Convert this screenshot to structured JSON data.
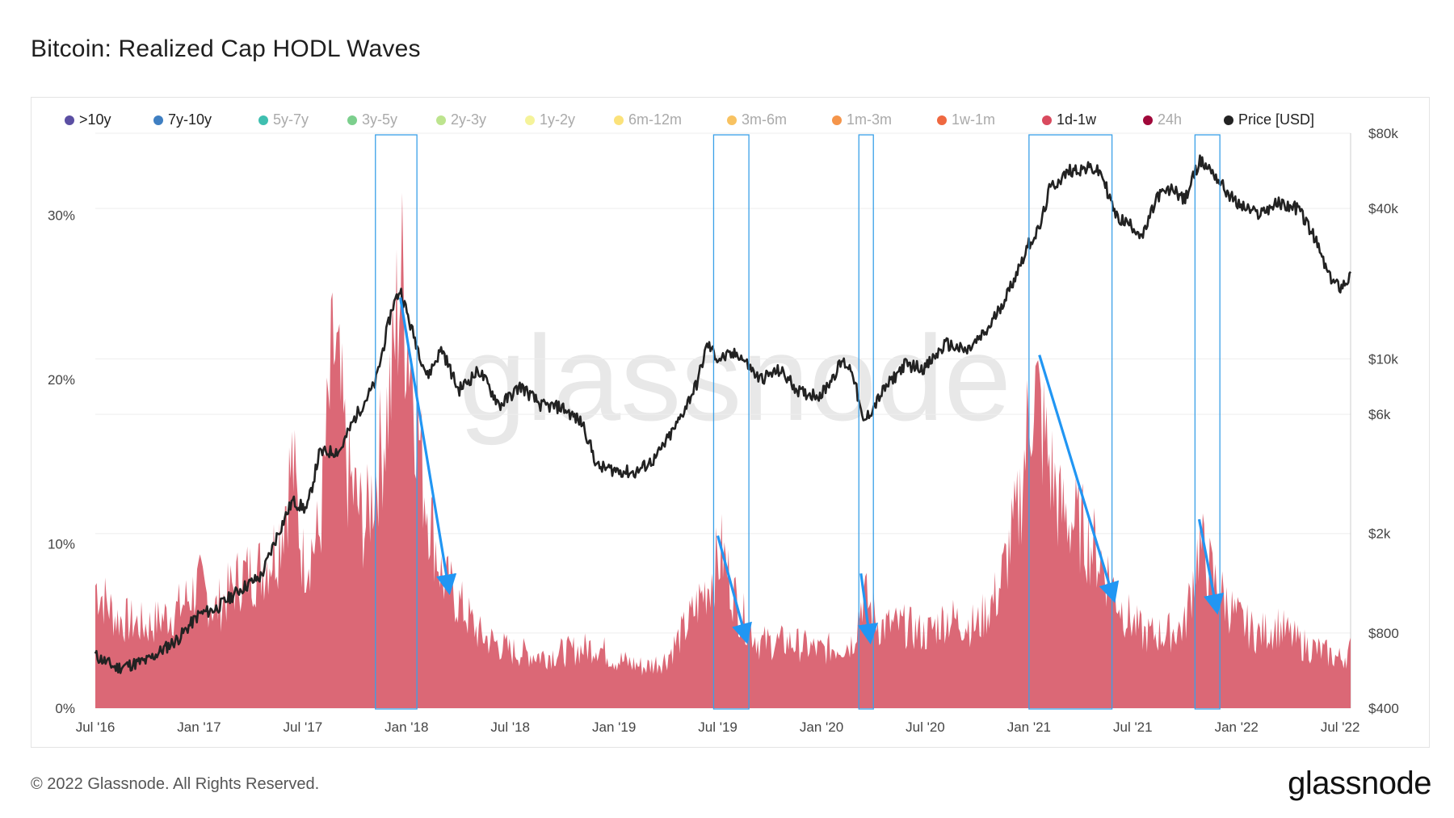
{
  "header": {
    "title": "Bitcoin: Realized Cap HODL Waves"
  },
  "footer": {
    "copyright": "© 2022 Glassnode. All Rights Reserved.",
    "logo": "glassnode"
  },
  "watermark": "glassnode",
  "colors": {
    "area": "#d9606f",
    "price": "#222222",
    "highlight": "#3aa0e8",
    "arrow": "#2196f3",
    "grid": "#eeeeee",
    "axis_text": "#444444"
  },
  "legend": [
    {
      "label": ">10y",
      "color": "#5b4fa3",
      "active": true
    },
    {
      "label": "7y-10y",
      "color": "#3f7fc2",
      "active": true
    },
    {
      "label": "5y-7y",
      "color": "#3fbfb0",
      "active": false
    },
    {
      "label": "3y-5y",
      "color": "#7ccf8d",
      "active": false
    },
    {
      "label": "2y-3y",
      "color": "#bde48e",
      "active": false
    },
    {
      "label": "1y-2y",
      "color": "#f5f39a",
      "active": false
    },
    {
      "label": "6m-12m",
      "color": "#fbe27a",
      "active": false
    },
    {
      "label": "3m-6m",
      "color": "#f8c261",
      "active": false
    },
    {
      "label": "1m-3m",
      "color": "#f5954a",
      "active": false
    },
    {
      "label": "1w-1m",
      "color": "#ef6840",
      "active": false
    },
    {
      "label": "1d-1w",
      "color": "#d94a5e",
      "active": true
    },
    {
      "label": "24h",
      "color": "#a0083a",
      "active": false
    },
    {
      "label": "Price [USD]",
      "color": "#222222",
      "active": true
    }
  ],
  "chart_data": {
    "type": "area",
    "title": "Bitcoin: Realized Cap HODL Waves",
    "series_shown": "1d-1w",
    "x_ticks": [
      "Jul '16",
      "Jan '17",
      "Jul '17",
      "Jan '18",
      "Jul '18",
      "Jan '19",
      "Jul '19",
      "Jan '20",
      "Jul '20",
      "Jan '21",
      "Jul '21",
      "Jan '22",
      "Jul '22"
    ],
    "x_range": [
      2016.5,
      2022.55
    ],
    "y_left": {
      "ticks": [
        "0%",
        "10%",
        "20%",
        "30%"
      ],
      "range": [
        0,
        35
      ]
    },
    "y_right": {
      "ticks": [
        "$400",
        "$800",
        "$2k",
        "$6k",
        "$10k",
        "$40k",
        "$80k"
      ],
      "tick_values": [
        400,
        800,
        2000,
        6000,
        10000,
        40000,
        80000
      ],
      "scale": "log",
      "range": [
        400,
        80000
      ]
    },
    "band_1d_1w_pct": [
      [
        2016.5,
        7.5
      ],
      [
        2016.6,
        5.5
      ],
      [
        2016.75,
        5.0
      ],
      [
        2016.9,
        6.0
      ],
      [
        2017.0,
        7.5
      ],
      [
        2017.08,
        6.0
      ],
      [
        2017.2,
        8.0
      ],
      [
        2017.3,
        8.5
      ],
      [
        2017.38,
        10.0
      ],
      [
        2017.45,
        15.0
      ],
      [
        2017.5,
        9.0
      ],
      [
        2017.58,
        10.5
      ],
      [
        2017.65,
        22.0
      ],
      [
        2017.72,
        14.0
      ],
      [
        2017.8,
        11.0
      ],
      [
        2017.88,
        16.0
      ],
      [
        2017.93,
        20.0
      ],
      [
        2017.97,
        26.5
      ],
      [
        2018.02,
        22.0
      ],
      [
        2018.08,
        14.0
      ],
      [
        2018.17,
        8.0
      ],
      [
        2018.25,
        6.5
      ],
      [
        2018.35,
        4.5
      ],
      [
        2018.5,
        3.5
      ],
      [
        2018.65,
        3.2
      ],
      [
        2018.8,
        3.5
      ],
      [
        2018.92,
        3.8
      ],
      [
        2019.0,
        3.0
      ],
      [
        2019.15,
        2.5
      ],
      [
        2019.25,
        3.0
      ],
      [
        2019.35,
        5.0
      ],
      [
        2019.45,
        7.5
      ],
      [
        2019.52,
        9.5
      ],
      [
        2019.6,
        6.0
      ],
      [
        2019.7,
        4.0
      ],
      [
        2019.85,
        4.0
      ],
      [
        2020.0,
        3.5
      ],
      [
        2020.15,
        4.0
      ],
      [
        2020.2,
        7.0
      ],
      [
        2020.28,
        5.0
      ],
      [
        2020.4,
        5.0
      ],
      [
        2020.5,
        4.5
      ],
      [
        2020.6,
        5.5
      ],
      [
        2020.75,
        5.0
      ],
      [
        2020.85,
        7.0
      ],
      [
        2020.95,
        12.0
      ],
      [
        2021.02,
        20.0
      ],
      [
        2021.08,
        16.0
      ],
      [
        2021.15,
        12.0
      ],
      [
        2021.25,
        11.0
      ],
      [
        2021.35,
        9.0
      ],
      [
        2021.45,
        6.0
      ],
      [
        2021.55,
        4.5
      ],
      [
        2021.65,
        4.5
      ],
      [
        2021.75,
        5.0
      ],
      [
        2021.82,
        10.0
      ],
      [
        2021.9,
        7.5
      ],
      [
        2022.0,
        5.5
      ],
      [
        2022.1,
        4.5
      ],
      [
        2022.2,
        5.0
      ],
      [
        2022.3,
        4.0
      ],
      [
        2022.4,
        3.5
      ],
      [
        2022.5,
        3.0
      ],
      [
        2022.55,
        3.5
      ]
    ],
    "price_usd": [
      [
        2016.5,
        650
      ],
      [
        2016.6,
        580
      ],
      [
        2016.75,
        620
      ],
      [
        2016.9,
        760
      ],
      [
        2017.0,
        950
      ],
      [
        2017.08,
        1000
      ],
      [
        2017.2,
        1200
      ],
      [
        2017.3,
        1350
      ],
      [
        2017.38,
        2000
      ],
      [
        2017.45,
        2700
      ],
      [
        2017.52,
        2500
      ],
      [
        2017.58,
        4200
      ],
      [
        2017.68,
        4300
      ],
      [
        2017.75,
        5800
      ],
      [
        2017.85,
        8000
      ],
      [
        2017.93,
        16000
      ],
      [
        2017.97,
        19000
      ],
      [
        2018.02,
        13500
      ],
      [
        2018.1,
        8500
      ],
      [
        2018.17,
        11000
      ],
      [
        2018.25,
        7500
      ],
      [
        2018.35,
        9000
      ],
      [
        2018.45,
        6500
      ],
      [
        2018.55,
        7800
      ],
      [
        2018.65,
        6500
      ],
      [
        2018.75,
        6400
      ],
      [
        2018.85,
        5500
      ],
      [
        2018.92,
        3700
      ],
      [
        2019.0,
        3600
      ],
      [
        2019.1,
        3500
      ],
      [
        2019.2,
        4000
      ],
      [
        2019.3,
        5400
      ],
      [
        2019.4,
        8000
      ],
      [
        2019.45,
        11500
      ],
      [
        2019.5,
        10000
      ],
      [
        2019.6,
        10500
      ],
      [
        2019.7,
        8300
      ],
      [
        2019.8,
        9000
      ],
      [
        2019.9,
        7300
      ],
      [
        2020.0,
        7200
      ],
      [
        2020.1,
        9800
      ],
      [
        2020.15,
        9000
      ],
      [
        2020.2,
        5500
      ],
      [
        2020.3,
        7500
      ],
      [
        2020.4,
        9500
      ],
      [
        2020.5,
        9200
      ],
      [
        2020.6,
        11500
      ],
      [
        2020.7,
        10700
      ],
      [
        2020.8,
        13000
      ],
      [
        2020.9,
        18500
      ],
      [
        2021.0,
        29000
      ],
      [
        2021.05,
        33000
      ],
      [
        2021.1,
        48000
      ],
      [
        2021.2,
        57000
      ],
      [
        2021.3,
        58000
      ],
      [
        2021.35,
        55000
      ],
      [
        2021.42,
        37000
      ],
      [
        2021.5,
        34000
      ],
      [
        2021.55,
        31000
      ],
      [
        2021.62,
        45000
      ],
      [
        2021.7,
        48000
      ],
      [
        2021.75,
        43000
      ],
      [
        2021.82,
        62000
      ],
      [
        2021.88,
        57000
      ],
      [
        2021.95,
        47000
      ],
      [
        2022.0,
        42000
      ],
      [
        2022.1,
        38000
      ],
      [
        2022.2,
        42000
      ],
      [
        2022.3,
        40000
      ],
      [
        2022.38,
        30000
      ],
      [
        2022.45,
        21000
      ],
      [
        2022.5,
        19500
      ],
      [
        2022.55,
        21500
      ]
    ],
    "highlight_windows": [
      [
        2017.85,
        2018.05
      ],
      [
        2019.48,
        2019.65
      ],
      [
        2020.18,
        2020.25
      ],
      [
        2021.0,
        2021.4
      ],
      [
        2021.8,
        2021.92
      ]
    ],
    "arrows": [
      {
        "from": [
          2017.97,
          25.0
        ],
        "to": [
          2018.2,
          7.5
        ]
      },
      {
        "from": [
          2019.5,
          10.5
        ],
        "to": [
          2019.63,
          4.5
        ]
      },
      {
        "from": [
          2020.19,
          8.2
        ],
        "to": [
          2020.23,
          4.5
        ]
      },
      {
        "from": [
          2021.05,
          21.5
        ],
        "to": [
          2021.4,
          7.0
        ]
      },
      {
        "from": [
          2021.82,
          11.5
        ],
        "to": [
          2021.9,
          6.3
        ]
      }
    ]
  }
}
